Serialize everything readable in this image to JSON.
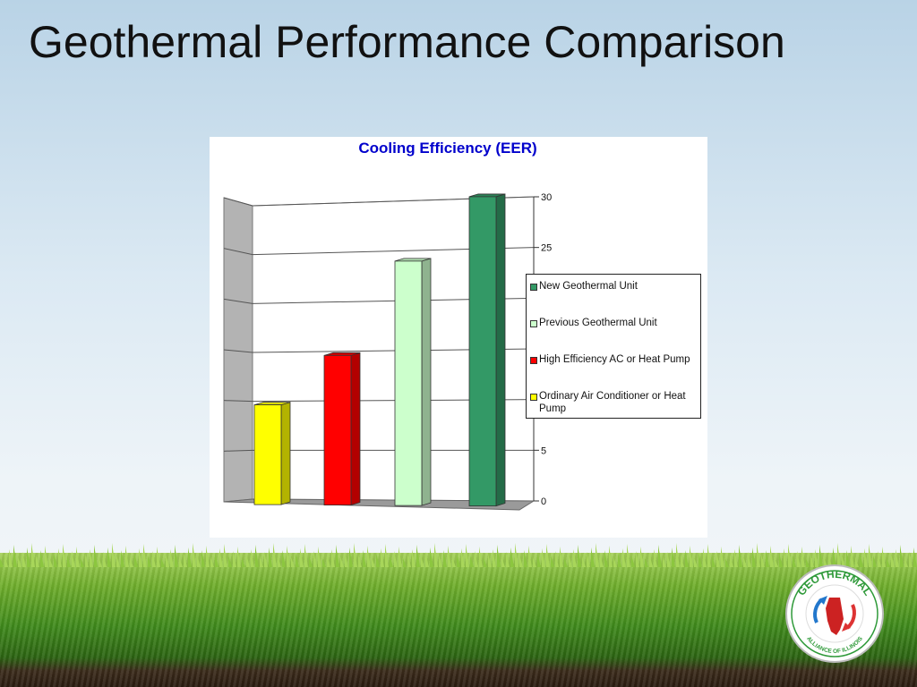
{
  "slide": {
    "title": "Geothermal Performance Comparison"
  },
  "logo": {
    "top_text": "GEOTHERMAL",
    "bottom_text": "ALLIANCE OF ILLINOIS"
  },
  "colors": {
    "ordinary_ac": "#ffff00",
    "high_eff_ac": "#ff0000",
    "prev_geo": "#ccffcc",
    "new_geo": "#339966",
    "title_blue": "#0000cc"
  },
  "chart_data": {
    "type": "bar",
    "title": "Cooling Efficiency (EER)",
    "three_d": true,
    "ylim": [
      0,
      30
    ],
    "yticks": [
      0,
      5,
      10,
      15,
      20,
      25,
      30
    ],
    "grid": true,
    "legend_position": "right",
    "series": [
      {
        "name": "Ordinary Air Conditioner or Heat Pump",
        "value": 10,
        "color": "#ffff00"
      },
      {
        "name": "High Efficiency AC or Heat Pump",
        "value": 15,
        "color": "#ff0000"
      },
      {
        "name": "Previous Geothermal Unit",
        "value": 24.5,
        "color": "#ccffcc"
      },
      {
        "name": "New Geothermal Unit",
        "value": 31,
        "color": "#339966"
      }
    ],
    "legend_order": [
      3,
      2,
      1,
      0
    ]
  }
}
